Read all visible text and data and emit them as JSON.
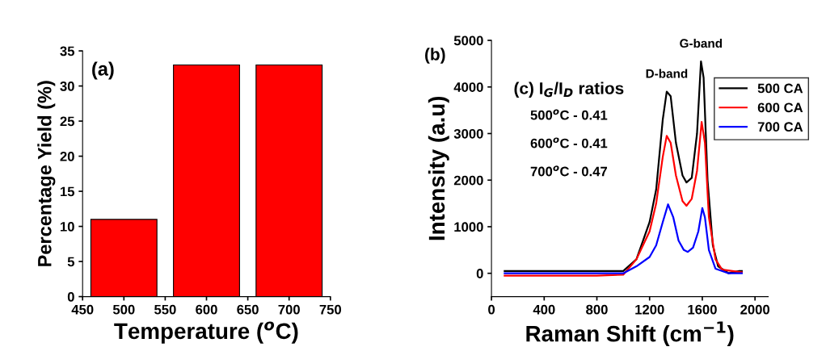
{
  "chart_data": [
    {
      "type": "bar",
      "xlabel": "Temperature ($^{o}$C)",
      "ylabel": "Percentage Yield (%)",
      "annotations": [
        "(a)"
      ],
      "x": [
        500,
        600,
        700
      ],
      "values": [
        11,
        33,
        33
      ],
      "color": "#ff0000",
      "xlim": [
        450,
        750
      ],
      "xticks": [
        450,
        500,
        550,
        600,
        650,
        700,
        750
      ],
      "ylim": [
        0,
        35
      ],
      "yticks": [
        0,
        5,
        10,
        15,
        20,
        25,
        30,
        35
      ],
      "grid": false,
      "legend": false
    },
    {
      "type": "line",
      "xlabel": "Raman Shift (cm$^{−1}$)",
      "ylabel": "Intensity (a.u)",
      "annotations": [
        "(b)",
        {
          "text": "D-band",
          "x": 1330,
          "y": 3900
        },
        {
          "text": "G-band",
          "x": 1590,
          "y": 4550
        },
        "(c) I$_{G}$/I$_{D}$ ratios",
        "500$^{o}$C - 0.41",
        "600$^{o}$C - 0.41",
        "700$^{o}$C - 0.47"
      ],
      "series": [
        {
          "name": "500 CA",
          "color": "#000000",
          "x": [
            100,
            300,
            500,
            800,
            1000,
            1100,
            1150,
            1200,
            1250,
            1300,
            1330,
            1360,
            1400,
            1450,
            1480,
            1520,
            1560,
            1590,
            1610,
            1640,
            1680,
            1720,
            1800,
            1880,
            1900
          ],
          "values": [
            50,
            50,
            50,
            50,
            50,
            300,
            700,
            1100,
            1800,
            3300,
            3900,
            3800,
            2800,
            2100,
            1950,
            2050,
            3000,
            4550,
            4200,
            2000,
            600,
            150,
            0,
            50,
            50
          ]
        },
        {
          "name": "600 CA",
          "color": "#ff0000",
          "x": [
            100,
            300,
            500,
            800,
            1000,
            1100,
            1150,
            1200,
            1250,
            1300,
            1330,
            1360,
            1400,
            1450,
            1480,
            1520,
            1560,
            1595,
            1620,
            1650,
            1700,
            1750,
            1900
          ],
          "values": [
            -50,
            -50,
            -50,
            -50,
            -30,
            300,
            600,
            900,
            1500,
            2500,
            2950,
            2800,
            2100,
            1550,
            1450,
            1600,
            2200,
            3250,
            2800,
            1200,
            300,
            80,
            20
          ]
        },
        {
          "name": "700 CA",
          "color": "#0000ff",
          "x": [
            100,
            300,
            500,
            800,
            1000,
            1100,
            1200,
            1250,
            1300,
            1340,
            1380,
            1420,
            1460,
            1490,
            1530,
            1570,
            1600,
            1620,
            1650,
            1700,
            1800,
            1900
          ],
          "values": [
            0,
            0,
            0,
            0,
            0,
            150,
            350,
            600,
            1100,
            1480,
            1200,
            700,
            500,
            460,
            550,
            900,
            1400,
            1200,
            500,
            100,
            0,
            0
          ]
        }
      ],
      "xlim": [
        0,
        2100
      ],
      "xticks": [
        0,
        400,
        800,
        1200,
        1600,
        2000
      ],
      "ylim": [
        -500,
        5000
      ],
      "yticks": [
        0,
        1000,
        2000,
        3000,
        4000,
        5000
      ],
      "grid": false,
      "legend": "top right",
      "line_style": "solid",
      "marker": "none"
    }
  ]
}
